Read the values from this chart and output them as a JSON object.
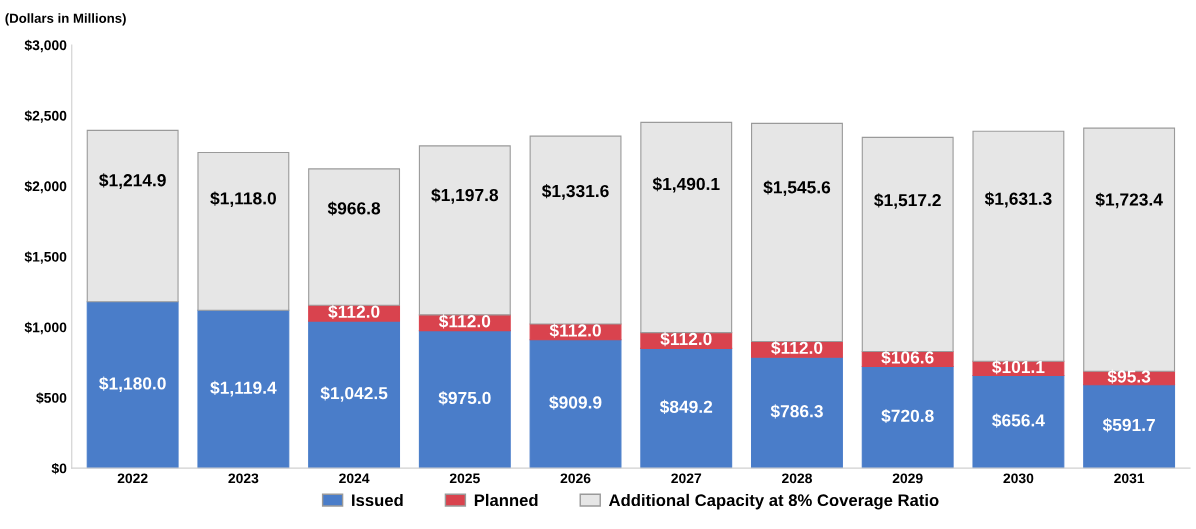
{
  "chart_data": {
    "type": "bar",
    "stacked": true,
    "ylabel": "(Dollars in Millions)",
    "categories": [
      "2022",
      "2023",
      "2024",
      "2025",
      "2026",
      "2027",
      "2028",
      "2029",
      "2030",
      "2031"
    ],
    "series": [
      {
        "name": "Issued",
        "color": "#4a7dc9",
        "values": [
          1180.0,
          1119.4,
          1042.5,
          975.0,
          909.9,
          849.2,
          786.3,
          720.8,
          656.4,
          591.7
        ],
        "value_labels": [
          "$1,180.0",
          "$1,119.4",
          "$1,042.5",
          "$975.0",
          "$909.9",
          "$849.2",
          "$786.3",
          "$720.8",
          "$656.4",
          "$591.7"
        ]
      },
      {
        "name": "Planned",
        "color": "#d9434e",
        "values": [
          null,
          null,
          112.0,
          112.0,
          112.0,
          112.0,
          112.0,
          106.6,
          101.1,
          95.3
        ],
        "value_labels": [
          null,
          null,
          "$112.0",
          "$112.0",
          "$112.0",
          "$112.0",
          "$112.0",
          "$106.6",
          "$101.1",
          "$95.3"
        ]
      },
      {
        "name": "Additional Capacity at 8% Coverage Ratio",
        "color": "#e6e6e6",
        "values": [
          1214.9,
          1118.0,
          966.8,
          1197.8,
          1331.6,
          1490.1,
          1545.6,
          1517.2,
          1631.3,
          1723.4
        ],
        "value_labels": [
          "$1,214.9",
          "$1,118.0",
          "$966.8",
          "$1,197.8",
          "$1,331.6",
          "$1,490.1",
          "$1,545.6",
          "$1,517.2",
          "$1,631.3",
          "$1,723.4"
        ]
      }
    ],
    "ylim": [
      0,
      3000
    ],
    "yticks": [
      {
        "value": 0,
        "label": "$0"
      },
      {
        "value": 500,
        "label": "$500"
      },
      {
        "value": 1000,
        "label": "$1,000"
      },
      {
        "value": 1500,
        "label": "$1,500"
      },
      {
        "value": 2000,
        "label": "$2,000"
      },
      {
        "value": 2500,
        "label": "$2,500"
      },
      {
        "value": 3000,
        "label": "$3,000"
      }
    ],
    "grid": false,
    "legend": "bottom"
  }
}
